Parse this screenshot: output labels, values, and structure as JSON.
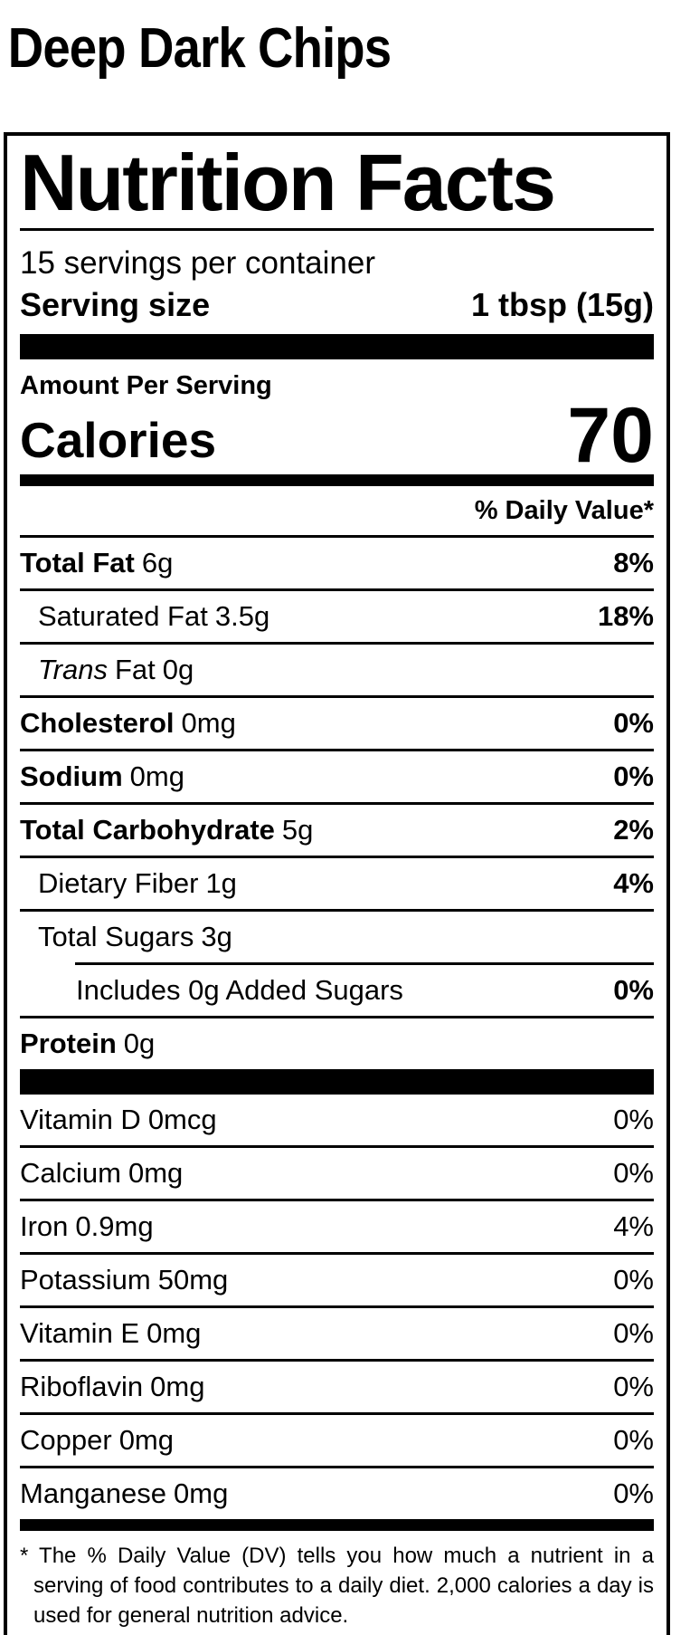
{
  "product": {
    "title": "Deep Dark Chips"
  },
  "colors": {
    "text": "#000000",
    "background": "#ffffff"
  },
  "label": {
    "header": "Nutrition Facts",
    "servings_per_container": "15 servings per container",
    "serving_size_label": "Serving size",
    "serving_size_value": "1 tbsp (15g)",
    "amount_per_serving": "Amount Per Serving",
    "calories_label": "Calories",
    "calories_value": "70",
    "daily_value_header": "% Daily Value*",
    "nutrients": [
      {
        "name": "Total Fat",
        "amount": "6g",
        "dv": "8%"
      },
      {
        "name": "Saturated Fat",
        "amount": "3.5g",
        "dv": "18%"
      },
      {
        "name_italic": "Trans",
        "name": "Fat",
        "amount": "0g",
        "dv": ""
      },
      {
        "name": "Cholesterol",
        "amount": "0mg",
        "dv": "0%"
      },
      {
        "name": "Sodium",
        "amount": "0mg",
        "dv": "0%"
      },
      {
        "name": "Total Carbohydrate",
        "amount": "5g",
        "dv": "2%"
      },
      {
        "name": "Dietary Fiber",
        "amount": "1g",
        "dv": "4%"
      },
      {
        "name": "Total Sugars",
        "amount": "3g",
        "dv": ""
      },
      {
        "name": "Includes 0g Added Sugars",
        "amount": "",
        "dv": "0%"
      },
      {
        "name": "Protein",
        "amount": "0g",
        "dv": ""
      }
    ],
    "micronutrients": [
      {
        "name": "Vitamin D",
        "amount": "0mcg",
        "dv": "0%"
      },
      {
        "name": "Calcium",
        "amount": "0mg",
        "dv": "0%"
      },
      {
        "name": "Iron",
        "amount": "0.9mg",
        "dv": "4%"
      },
      {
        "name": "Potassium",
        "amount": "50mg",
        "dv": "0%"
      },
      {
        "name": "Vitamin E",
        "amount": "0mg",
        "dv": "0%"
      },
      {
        "name": "Riboflavin",
        "amount": "0mg",
        "dv": "0%"
      },
      {
        "name": "Copper",
        "amount": "0mg",
        "dv": "0%"
      },
      {
        "name": "Manganese",
        "amount": "0mg",
        "dv": "0%"
      }
    ],
    "footnote": "* The % Daily Value (DV) tells you how much a nutrient in a serving of food contributes to a daily diet. 2,000 calories a day is used for general nutrition advice."
  }
}
